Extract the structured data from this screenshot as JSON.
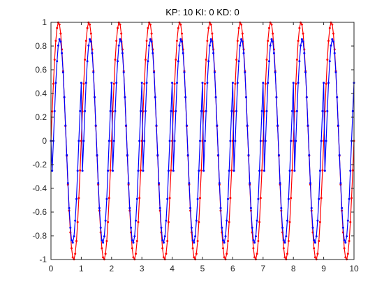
{
  "chart_data": {
    "type": "line",
    "title": "KP: 10 KI: 0 KD: 0",
    "xlabel": "",
    "ylabel": "",
    "xlim": [
      0,
      10
    ],
    "ylim": [
      -1,
      1
    ],
    "grid": false,
    "x_ticks": [
      "0",
      "1",
      "2",
      "3",
      "4",
      "5",
      "6",
      "7",
      "8",
      "9",
      "10"
    ],
    "y_ticks": [
      "1",
      "0.8",
      "0.6",
      "0.4",
      "0.2",
      "0",
      "-0.2",
      "-0.4",
      "-0.6",
      "-0.8",
      "-1"
    ],
    "series": [
      {
        "color": "#ff0000",
        "marker": ".",
        "x": [
          0,
          0.04,
          0.08,
          0.12,
          0.16,
          0.2,
          0.24,
          0.28,
          0.32,
          0.36,
          0.4,
          0.44,
          0.48,
          0.52,
          0.56,
          0.6,
          0.64,
          0.68,
          0.72,
          0.76,
          0.8,
          0.84,
          0.88,
          0.92,
          0.96,
          1
        ],
        "y": [
          0,
          0.248,
          0.482,
          0.685,
          0.844,
          0.951,
          0.998,
          0.982,
          0.905,
          0.771,
          0.588,
          0.368,
          0.125,
          -0.125,
          -0.368,
          -0.588,
          -0.771,
          -0.905,
          -0.982,
          -0.998,
          -0.951,
          -0.844,
          -0.685,
          -0.482,
          -0.248,
          0
        ],
        "period": 1,
        "x_end": 10
      },
      {
        "color": "#0000ff",
        "marker": ".",
        "x": [
          0,
          0.04,
          0.08,
          0.12,
          0.16,
          0.2,
          0.24,
          0.28,
          0.32,
          0.36,
          0.4,
          0.44,
          0.48,
          0.52,
          0.56,
          0.6,
          0.64,
          0.68,
          0.72,
          0.76,
          0.8,
          0.84,
          0.88,
          0.92,
          0.96,
          1
        ],
        "y": [
          -0.49,
          -0.251,
          0.0,
          0.251,
          0.49,
          0.672,
          0.804,
          0.857,
          0.838,
          0.74,
          0.578,
          0.368,
          0.13,
          -0.12,
          -0.356,
          -0.566,
          -0.732,
          -0.838,
          -0.857,
          -0.804,
          -0.672,
          -0.49,
          -0.251,
          0.0,
          0.251,
          0.49
        ],
        "start_y": 0,
        "period": 1,
        "x_end": 10
      }
    ]
  }
}
